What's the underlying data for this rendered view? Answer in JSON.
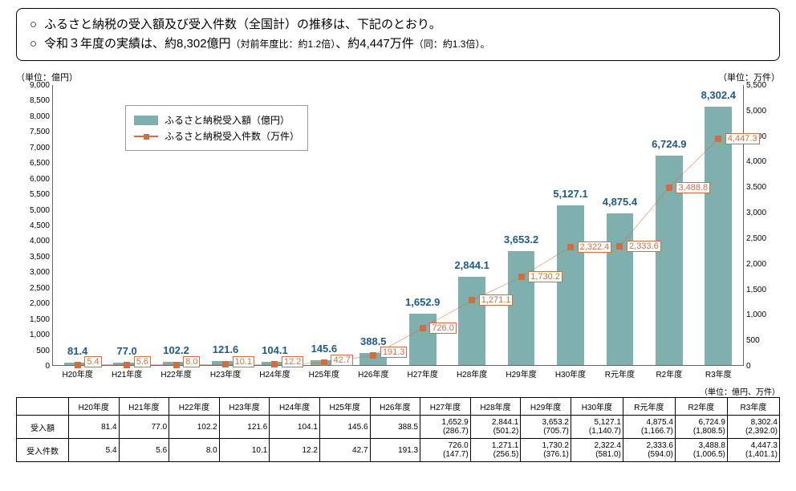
{
  "header": {
    "line1_prefix": "○",
    "line1": "ふるさと納税の受入額及び受入件数（全国計）の推移は、下記のとおり。",
    "line2_prefix": "○",
    "line2_a": "令和３年度の実績は、約8,302億円",
    "line2_b": "（対前年度比：約1.2倍）",
    "line2_c": "、約4,447万件",
    "line2_d": "（同：約1.3倍）。"
  },
  "chart": {
    "unit_left": "（単位：億円）",
    "unit_right": "（単位：万件）",
    "legend_bar": "ふるさと納税受入額（億円）",
    "legend_line": "ふるさと納税受入件数（万件）",
    "yleft": {
      "min": 0,
      "max": 9000,
      "step": 500
    },
    "yright": {
      "min": 0,
      "max": 5500,
      "step": 500
    },
    "bar_color": "#7fb0ad",
    "line_color": "#cd6f42",
    "bar_label_color": "#1f5a8a",
    "categories": [
      "H20年度",
      "H21年度",
      "H22年度",
      "H23年度",
      "H24年度",
      "H25年度",
      "H26年度",
      "H27年度",
      "H28年度",
      "H29年度",
      "H30年度",
      "R元年度",
      "R2年度",
      "R3年度"
    ],
    "bar_values": [
      81.4,
      77.0,
      102.2,
      121.6,
      104.1,
      145.6,
      388.5,
      1652.9,
      2844.1,
      3653.2,
      5127.1,
      4875.4,
      6724.9,
      8302.4
    ],
    "line_values": [
      5.4,
      5.6,
      8.0,
      10.1,
      12.2,
      42.7,
      191.3,
      726.0,
      1271.1,
      1730.2,
      2322.4,
      2333.6,
      3488.8,
      4447.3
    ],
    "bar_labels": [
      "81.4",
      "77.0",
      "102.2",
      "121.6",
      "104.1",
      "145.6",
      "388.5",
      "1,652.9",
      "2,844.1",
      "3,653.2",
      "5,127.1",
      "4,875.4",
      "6,724.9",
      "8,302.4"
    ],
    "line_labels": [
      "5.4",
      "5.6",
      "8.0",
      "10.1",
      "12.2",
      "42.7",
      "191.3",
      "726.0",
      "1,271.1",
      "1,730.2",
      "2,322.4",
      "2,333.6",
      "3,488.8",
      "4,447.3"
    ]
  },
  "table": {
    "unit": "（単位：億円、万件）",
    "row1_head": "受入額",
    "row2_head": "受入件数",
    "headers": [
      "H20年度",
      "H21年度",
      "H22年度",
      "H23年度",
      "H24年度",
      "H25年度",
      "H26年度",
      "H27年度",
      "H28年度",
      "H29年度",
      "H30年度",
      "R元年度",
      "R2年度",
      "R3年度"
    ],
    "row1": [
      "81.4",
      "77.0",
      "102.2",
      "121.6",
      "104.1",
      "145.6",
      "388.5",
      "1,652.9",
      "2,844.1",
      "3,653.2",
      "5,127.1",
      "4,875.4",
      "6,724.9",
      "8,302.4"
    ],
    "row1_sub": [
      "",
      "",
      "",
      "",
      "",
      "",
      "",
      "(286.7)",
      "(501.2)",
      "(705.7)",
      "(1,140.7)",
      "(1,166.7)",
      "(1,808.5)",
      "(2,392.0)"
    ],
    "row2": [
      "5.4",
      "5.6",
      "8.0",
      "10.1",
      "12.2",
      "42.7",
      "191.3",
      "726.0",
      "1,271.1",
      "1,730.2",
      "2,322.4",
      "2,333.6",
      "3,488.8",
      "4,447.3"
    ],
    "row2_sub": [
      "",
      "",
      "",
      "",
      "",
      "",
      "",
      "(147.7)",
      "(256.5)",
      "(376.1)",
      "(581.0)",
      "(594.0)",
      "(1,006.5)",
      "(1,401.1)"
    ]
  }
}
